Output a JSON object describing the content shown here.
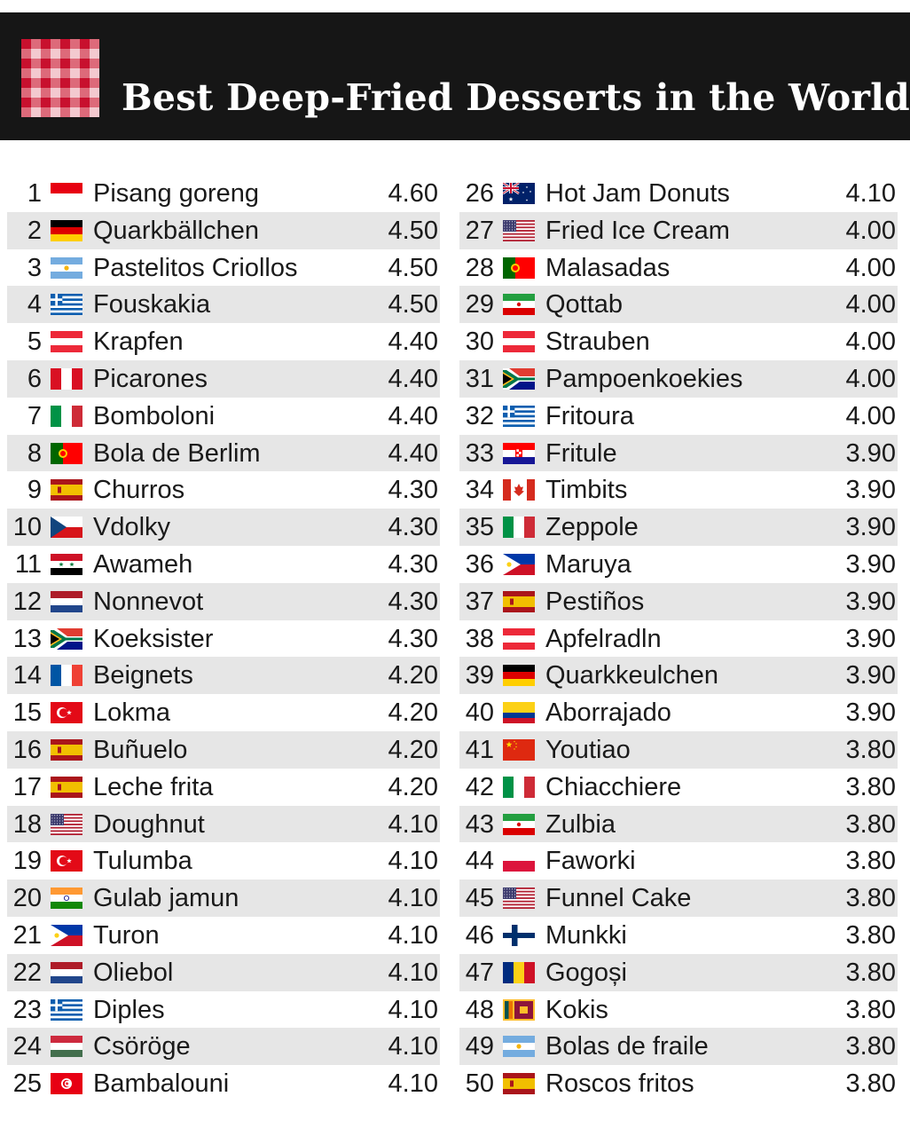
{
  "title": "Best Deep-Fried Desserts in the World",
  "colors": {
    "header_bg": "#161616",
    "row_shade": "#e6e6e6",
    "logo_red": "#c8102e"
  },
  "chart_data": {
    "type": "table",
    "title": "Best Deep-Fried Desserts in the World",
    "columns": [
      "rank",
      "country_flag",
      "dessert",
      "rating"
    ],
    "rows": [
      {
        "rank": "1",
        "flag": "ID",
        "name": "Pisang goreng",
        "score": "4.60"
      },
      {
        "rank": "2",
        "flag": "DE",
        "name": "Quarkbällchen",
        "score": "4.50"
      },
      {
        "rank": "3",
        "flag": "AR",
        "name": "Pastelitos Criollos",
        "score": "4.50"
      },
      {
        "rank": "4",
        "flag": "GR",
        "name": "Fouskakia",
        "score": "4.50"
      },
      {
        "rank": "5",
        "flag": "AT",
        "name": "Krapfen",
        "score": "4.40"
      },
      {
        "rank": "6",
        "flag": "PE",
        "name": "Picarones",
        "score": "4.40"
      },
      {
        "rank": "7",
        "flag": "IT",
        "name": "Bomboloni",
        "score": "4.40"
      },
      {
        "rank": "8",
        "flag": "PT",
        "name": "Bola de Berlim",
        "score": "4.40"
      },
      {
        "rank": "9",
        "flag": "ES",
        "name": "Churros",
        "score": "4.30"
      },
      {
        "rank": "10",
        "flag": "CZ",
        "name": "Vdolky",
        "score": "4.30"
      },
      {
        "rank": "11",
        "flag": "SY",
        "name": "Awameh",
        "score": "4.30"
      },
      {
        "rank": "12",
        "flag": "NL",
        "name": "Nonnevot",
        "score": "4.30"
      },
      {
        "rank": "13",
        "flag": "ZA",
        "name": "Koeksister",
        "score": "4.30"
      },
      {
        "rank": "14",
        "flag": "FR",
        "name": "Beignets",
        "score": "4.20"
      },
      {
        "rank": "15",
        "flag": "TR",
        "name": "Lokma",
        "score": "4.20"
      },
      {
        "rank": "16",
        "flag": "ES",
        "name": "Buñuelo",
        "score": "4.20"
      },
      {
        "rank": "17",
        "flag": "ES",
        "name": "Leche frita",
        "score": "4.20"
      },
      {
        "rank": "18",
        "flag": "US",
        "name": "Doughnut",
        "score": "4.10"
      },
      {
        "rank": "19",
        "flag": "TR",
        "name": "Tulumba",
        "score": "4.10"
      },
      {
        "rank": "20",
        "flag": "IN",
        "name": "Gulab jamun",
        "score": "4.10"
      },
      {
        "rank": "21",
        "flag": "PH",
        "name": "Turon",
        "score": "4.10"
      },
      {
        "rank": "22",
        "flag": "NL",
        "name": "Oliebol",
        "score": "4.10"
      },
      {
        "rank": "23",
        "flag": "GR",
        "name": "Diples",
        "score": "4.10"
      },
      {
        "rank": "24",
        "flag": "HU",
        "name": "Csöröge",
        "score": "4.10"
      },
      {
        "rank": "25",
        "flag": "TN",
        "name": "Bambalouni",
        "score": "4.10"
      },
      {
        "rank": "26",
        "flag": "AU",
        "name": "Hot Jam Donuts",
        "score": "4.10"
      },
      {
        "rank": "27",
        "flag": "US",
        "name": "Fried Ice Cream",
        "score": "4.00"
      },
      {
        "rank": "28",
        "flag": "PT",
        "name": "Malasadas",
        "score": "4.00"
      },
      {
        "rank": "29",
        "flag": "IR",
        "name": "Qottab",
        "score": "4.00"
      },
      {
        "rank": "30",
        "flag": "AT",
        "name": "Strauben",
        "score": "4.00"
      },
      {
        "rank": "31",
        "flag": "ZA",
        "name": "Pampoenkoekies",
        "score": "4.00"
      },
      {
        "rank": "32",
        "flag": "GR",
        "name": "Fritoura",
        "score": "4.00"
      },
      {
        "rank": "33",
        "flag": "HR",
        "name": "Fritule",
        "score": "3.90"
      },
      {
        "rank": "34",
        "flag": "CA",
        "name": "Timbits",
        "score": "3.90"
      },
      {
        "rank": "35",
        "flag": "IT",
        "name": "Zeppole",
        "score": "3.90"
      },
      {
        "rank": "36",
        "flag": "PH",
        "name": "Maruya",
        "score": "3.90"
      },
      {
        "rank": "37",
        "flag": "ES",
        "name": "Pestiños",
        "score": "3.90"
      },
      {
        "rank": "38",
        "flag": "AT",
        "name": "Apfelradln",
        "score": "3.90"
      },
      {
        "rank": "39",
        "flag": "DE",
        "name": "Quarkkeulchen",
        "score": "3.90"
      },
      {
        "rank": "40",
        "flag": "CO",
        "name": "Aborrajado",
        "score": "3.90"
      },
      {
        "rank": "41",
        "flag": "CN",
        "name": "Youtiao",
        "score": "3.80"
      },
      {
        "rank": "42",
        "flag": "IT",
        "name": "Chiacchiere",
        "score": "3.80"
      },
      {
        "rank": "43",
        "flag": "IR",
        "name": "Zulbia",
        "score": "3.80"
      },
      {
        "rank": "44",
        "flag": "PL",
        "name": "Faworki",
        "score": "3.80"
      },
      {
        "rank": "45",
        "flag": "US",
        "name": "Funnel Cake",
        "score": "3.80"
      },
      {
        "rank": "46",
        "flag": "FI",
        "name": "Munkki",
        "score": "3.80"
      },
      {
        "rank": "47",
        "flag": "RO",
        "name": "Gogoși",
        "score": "3.80"
      },
      {
        "rank": "48",
        "flag": "LK",
        "name": "Kokis",
        "score": "3.80"
      },
      {
        "rank": "49",
        "flag": "AR",
        "name": "Bolas de fraile",
        "score": "3.80"
      },
      {
        "rank": "50",
        "flag": "ES",
        "name": "Roscos fritos",
        "score": "3.80"
      }
    ]
  }
}
